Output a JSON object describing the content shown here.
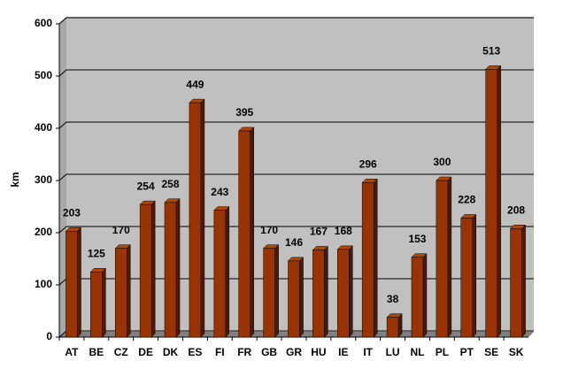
{
  "chart_data": {
    "type": "bar",
    "categories": [
      "AT",
      "BE",
      "CZ",
      "DE",
      "DK",
      "ES",
      "FI",
      "FR",
      "GB",
      "GR",
      "HU",
      "IE",
      "IT",
      "LU",
      "NL",
      "PL",
      "PT",
      "SE",
      "SK"
    ],
    "values": [
      203,
      125,
      170,
      254,
      258,
      449,
      243,
      395,
      170,
      146,
      167,
      168,
      296,
      38,
      153,
      300,
      228,
      513,
      208
    ],
    "color": "#993300",
    "ylabel": "km",
    "ylim": [
      0,
      600
    ],
    "yticks": [
      0,
      100,
      200,
      300,
      400,
      500,
      600
    ],
    "grid": true
  }
}
